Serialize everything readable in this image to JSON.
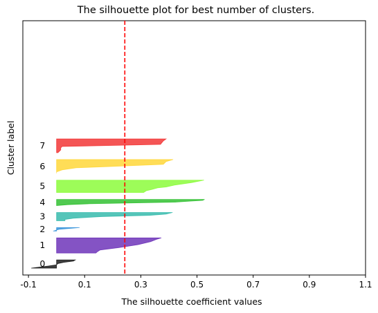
{
  "chart_data": {
    "type": "area",
    "title": "The silhouette plot for best number of clusters.",
    "xlabel": "The silhouette coefficient values",
    "ylabel": "Cluster label",
    "xlim": [
      -0.12,
      1.1
    ],
    "ylim": [
      0,
      370
    ],
    "xticks": [
      -0.1,
      0.1,
      0.3,
      0.5,
      0.7,
      0.9,
      1.1
    ],
    "xtick_labels": [
      "-0.1",
      "0.1",
      "0.3",
      "0.5",
      "0.7",
      "0.9",
      "1.1"
    ],
    "grid": false,
    "average_score": 0.243,
    "average_line_color": "#ff0000",
    "clusters": [
      {
        "label": "0",
        "color": "#000000",
        "y_lower": 10,
        "y_upper": 22,
        "profile": [
          [
            0,
            0.067
          ],
          [
            0.15,
            0.06
          ],
          [
            0.3,
            0.025
          ],
          [
            0.45,
            0.005
          ],
          [
            0.6,
            0
          ],
          [
            0.75,
            -0.03
          ],
          [
            1,
            -0.09
          ]
        ]
      },
      {
        "label": "1",
        "color": "#5b19b0",
        "y_lower": 32,
        "y_upper": 54,
        "profile": [
          [
            0,
            0.373
          ],
          [
            0.1,
            0.355
          ],
          [
            0.25,
            0.335
          ],
          [
            0.45,
            0.29
          ],
          [
            0.65,
            0.22
          ],
          [
            0.8,
            0.155
          ],
          [
            0.92,
            0.145
          ],
          [
            1,
            0.14
          ]
        ]
      },
      {
        "label": "2",
        "color": "#1c86d6",
        "y_lower": 64,
        "y_upper": 69,
        "profile": [
          [
            0,
            0.082
          ],
          [
            0.5,
            0.01
          ],
          [
            0.7,
            0.0
          ],
          [
            0.85,
            -0.005
          ],
          [
            1,
            -0.012
          ]
        ]
      },
      {
        "label": "3",
        "color": "#1cb2a2",
        "y_lower": 79,
        "y_upper": 91,
        "profile": [
          [
            0,
            0.413
          ],
          [
            0.2,
            0.39
          ],
          [
            0.35,
            0.33
          ],
          [
            0.5,
            0.16
          ],
          [
            0.7,
            0.06
          ],
          [
            0.85,
            0.03
          ],
          [
            1,
            0.03
          ]
        ]
      },
      {
        "label": "4",
        "color": "#17b817",
        "y_lower": 101,
        "y_upper": 110,
        "profile": [
          [
            0,
            0.527
          ],
          [
            0.15,
            0.52
          ],
          [
            0.3,
            0.47
          ],
          [
            0.45,
            0.42
          ],
          [
            0.55,
            0.3
          ],
          [
            0.7,
            0.12
          ],
          [
            0.85,
            0.04
          ],
          [
            1,
            0.0
          ]
        ]
      },
      {
        "label": "5",
        "color": "#7cfb22",
        "y_lower": 120,
        "y_upper": 138,
        "profile": [
          [
            0,
            0.525
          ],
          [
            0.2,
            0.48
          ],
          [
            0.4,
            0.42
          ],
          [
            0.55,
            0.39
          ],
          [
            0.62,
            0.36
          ],
          [
            0.75,
            0.34
          ],
          [
            0.85,
            0.32
          ],
          [
            1,
            0.31
          ]
        ]
      },
      {
        "label": "6",
        "color": "#ffd21f",
        "y_lower": 148,
        "y_upper": 168,
        "profile": [
          [
            0,
            0.415
          ],
          [
            0.15,
            0.39
          ],
          [
            0.35,
            0.38
          ],
          [
            0.5,
            0.2
          ],
          [
            0.6,
            0.07
          ],
          [
            0.75,
            0.02
          ],
          [
            0.9,
            0.0
          ],
          [
            1,
            0.0
          ]
        ]
      },
      {
        "label": "7",
        "color": "#f01c1c",
        "y_lower": 178,
        "y_upper": 198,
        "profile": [
          [
            0,
            0.39
          ],
          [
            0.15,
            0.38
          ],
          [
            0.4,
            0.37
          ],
          [
            0.55,
            0.02
          ],
          [
            0.65,
            0.015
          ],
          [
            0.8,
            0.015
          ],
          [
            0.9,
            0.01
          ],
          [
            1,
            0.005
          ]
        ]
      }
    ]
  }
}
